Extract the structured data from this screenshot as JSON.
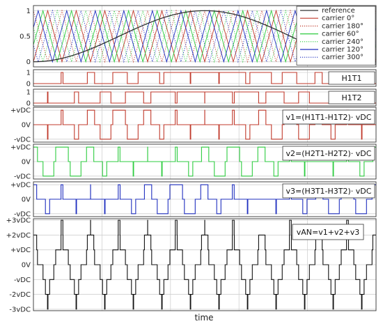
{
  "chart_data": {
    "type": "line",
    "xlabel": "time",
    "panels": [
      {
        "id": "carrier",
        "ylim": [
          -0.1,
          1.1
        ],
        "yticks": [
          {
            "v": 1,
            "label": "1"
          },
          {
            "v": 0.5,
            "label": "0.5"
          },
          {
            "v": 0,
            "label": "0"
          }
        ],
        "legend": {
          "position": "top-right",
          "entries": [
            {
              "label": "reference",
              "color": "#333333",
              "dash": "solid"
            },
            {
              "label": "carrier 0°",
              "color": "#c0392b",
              "dash": "solid"
            },
            {
              "label": "carrier 180°",
              "color": "#c0392b",
              "dash": "dotted"
            },
            {
              "label": "carrier 60°",
              "color": "#2ecc40",
              "dash": "solid"
            },
            {
              "label": "carrier 240°",
              "color": "#2ecc40",
              "dash": "dotted"
            },
            {
              "label": "carrier 120°",
              "color": "#1f2fbf",
              "dash": "solid"
            },
            {
              "label": "carrier 300°",
              "color": "#1f2fbf",
              "dash": "dotted"
            }
          ]
        },
        "reference": {
          "amplitude": 0.5,
          "offset": 0.5,
          "phase_deg": 180,
          "periods": 1
        },
        "carriers": {
          "periods": 12,
          "phases_deg": [
            0,
            180,
            60,
            240,
            120,
            300
          ]
        }
      },
      {
        "id": "h1t1",
        "label": "H1T1",
        "ylim": [
          -0.25,
          1.25
        ],
        "yticks": [
          {
            "v": 1,
            "label": "1"
          },
          {
            "v": 0,
            "label": "0"
          }
        ],
        "color": "#c0392b"
      },
      {
        "id": "h1t2",
        "label": "H1T2",
        "ylim": [
          -0.25,
          1.25
        ],
        "yticks": [
          {
            "v": 1,
            "label": "1"
          },
          {
            "v": 0,
            "label": "0"
          }
        ],
        "color": "#c0392b"
      },
      {
        "id": "v1",
        "label": "v1=(H1T1-H1T2)· vDC",
        "ylim": [
          -1.2,
          1.2
        ],
        "yticks": [
          {
            "v": 1,
            "label": "+vDC"
          },
          {
            "v": 0,
            "label": "0V"
          },
          {
            "v": -1,
            "label": "-vDC"
          }
        ],
        "color": "#c0392b",
        "phase_deg": 0
      },
      {
        "id": "v2",
        "label": "v2=(H2T1-H2T2)· vDC",
        "ylim": [
          -1.2,
          1.2
        ],
        "yticks": [
          {
            "v": 1,
            "label": "+vDC"
          },
          {
            "v": 0,
            "label": "0V"
          },
          {
            "v": -1,
            "label": "-vDC"
          }
        ],
        "color": "#2ecc40",
        "phase_deg": 60
      },
      {
        "id": "v3",
        "label": "v3=(H3T1-H3T2)· vDC",
        "ylim": [
          -1.2,
          1.2
        ],
        "yticks": [
          {
            "v": 1,
            "label": "+vDC"
          },
          {
            "v": 0,
            "label": "0V"
          },
          {
            "v": -1,
            "label": "-vDC"
          }
        ],
        "color": "#1f2fbf",
        "phase_deg": 120
      },
      {
        "id": "van",
        "label": "vAN=v1+v2+v3",
        "ylim": [
          -3.1,
          3.1
        ],
        "yticks": [
          {
            "v": 3,
            "label": "+3vDC"
          },
          {
            "v": 2,
            "label": "+2vDC"
          },
          {
            "v": 1,
            "label": "+vDC"
          },
          {
            "v": 0,
            "label": "0V"
          },
          {
            "v": -1,
            "label": "-vDC"
          },
          {
            "v": -2,
            "label": "-2vDC"
          },
          {
            "v": -3,
            "label": "-3vDC"
          }
        ],
        "color": "#111111"
      }
    ]
  }
}
